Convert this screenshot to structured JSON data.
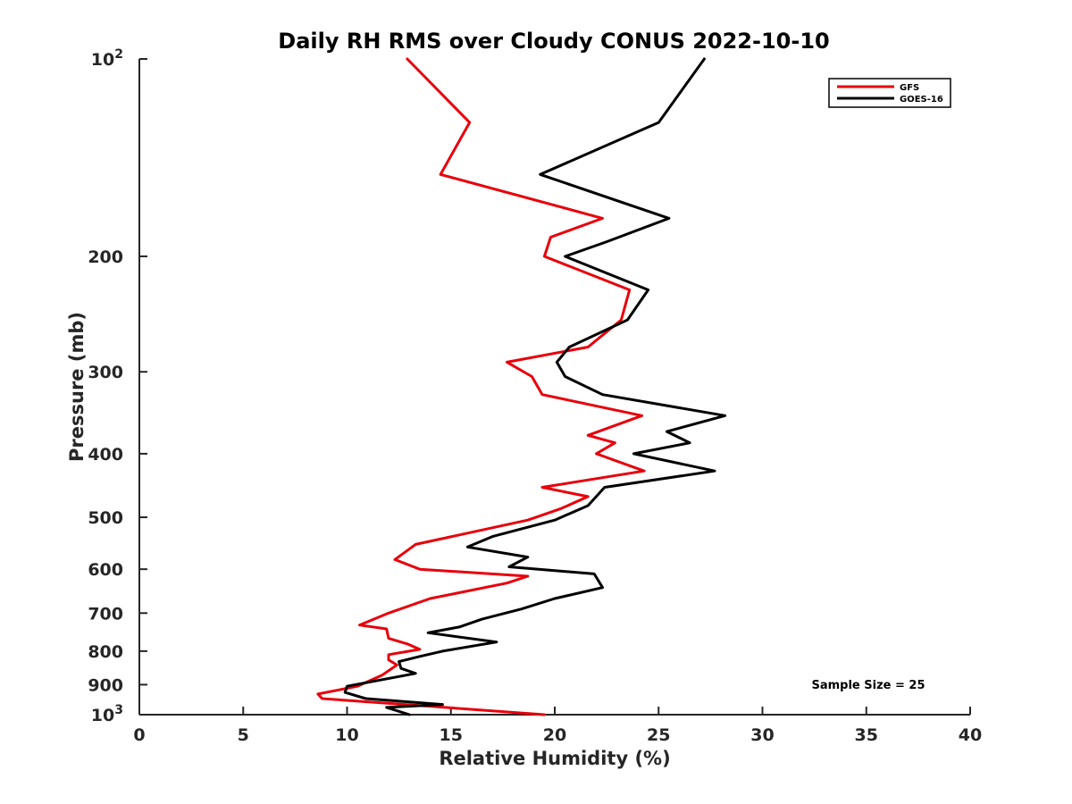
{
  "chart_data": {
    "type": "line",
    "title": "Daily RH RMS over Cloudy CONUS 2022-10-10",
    "xlabel": "Relative Humidity (%)",
    "ylabel": "Pressure (mb)",
    "xlim": [
      0,
      40
    ],
    "ylim": [
      100,
      1000
    ],
    "yscale": "log",
    "y_reversed": true,
    "grid": false,
    "legend_position": "top-right",
    "x_ticks": [
      "0",
      "5",
      "10",
      "15",
      "20",
      "25",
      "30",
      "35",
      "40"
    ],
    "y_ticks": [
      {
        "value": 100,
        "base": "10",
        "exp": "2"
      },
      {
        "value": 200,
        "label": "200"
      },
      {
        "value": 300,
        "label": "300"
      },
      {
        "value": 400,
        "label": "400"
      },
      {
        "value": 500,
        "label": "500"
      },
      {
        "value": 600,
        "label": "600"
      },
      {
        "value": 700,
        "label": "700"
      },
      {
        "value": 800,
        "label": "800"
      },
      {
        "value": 900,
        "label": "900"
      },
      {
        "value": 1000,
        "base": "10",
        "exp": "3"
      }
    ],
    "annotation": "Sample Size = 25",
    "series": [
      {
        "name": "GFS",
        "color": "#e8000b",
        "points": [
          [
            12.9,
            100
          ],
          [
            15.9,
            125
          ],
          [
            14.5,
            150
          ],
          [
            22.3,
            175
          ],
          [
            19.8,
            187
          ],
          [
            19.5,
            200
          ],
          [
            23.6,
            225
          ],
          [
            23.2,
            250
          ],
          [
            21.6,
            275
          ],
          [
            17.7,
            290
          ],
          [
            18.9,
            305
          ],
          [
            19.4,
            325
          ],
          [
            24.2,
            350
          ],
          [
            21.6,
            375
          ],
          [
            22.9,
            385
          ],
          [
            22.0,
            400
          ],
          [
            24.3,
            425
          ],
          [
            19.4,
            450
          ],
          [
            21.6,
            465
          ],
          [
            20.3,
            485
          ],
          [
            18.7,
            505
          ],
          [
            13.3,
            550
          ],
          [
            12.3,
            580
          ],
          [
            13.5,
            600
          ],
          [
            18.7,
            615
          ],
          [
            17.7,
            630
          ],
          [
            14.0,
            665
          ],
          [
            12.0,
            700
          ],
          [
            10.6,
            730
          ],
          [
            11.9,
            740
          ],
          [
            12.0,
            765
          ],
          [
            12.9,
            780
          ],
          [
            13.5,
            795
          ],
          [
            12.0,
            810
          ],
          [
            12.0,
            825
          ],
          [
            12.4,
            840
          ],
          [
            11.7,
            870
          ],
          [
            10.5,
            905
          ],
          [
            8.6,
            930
          ],
          [
            8.8,
            945
          ],
          [
            12.8,
            965
          ],
          [
            19.5,
            1000
          ]
        ]
      },
      {
        "name": "GOES-16",
        "color": "#000000",
        "points": [
          [
            27.2,
            100
          ],
          [
            25.0,
            125
          ],
          [
            19.3,
            150
          ],
          [
            25.5,
            175
          ],
          [
            22.5,
            190
          ],
          [
            20.5,
            200
          ],
          [
            24.5,
            225
          ],
          [
            23.5,
            250
          ],
          [
            20.7,
            275
          ],
          [
            20.1,
            290
          ],
          [
            20.5,
            305
          ],
          [
            22.3,
            325
          ],
          [
            28.2,
            350
          ],
          [
            25.4,
            370
          ],
          [
            26.5,
            385
          ],
          [
            23.8,
            400
          ],
          [
            27.7,
            425
          ],
          [
            22.4,
            450
          ],
          [
            21.6,
            480
          ],
          [
            20.0,
            505
          ],
          [
            17.0,
            535
          ],
          [
            15.8,
            555
          ],
          [
            18.7,
            575
          ],
          [
            17.8,
            595
          ],
          [
            21.9,
            610
          ],
          [
            22.3,
            640
          ],
          [
            20.0,
            665
          ],
          [
            18.4,
            690
          ],
          [
            16.5,
            715
          ],
          [
            15.4,
            735
          ],
          [
            13.9,
            750
          ],
          [
            17.2,
            775
          ],
          [
            14.6,
            800
          ],
          [
            13.5,
            815
          ],
          [
            12.5,
            830
          ],
          [
            12.6,
            850
          ],
          [
            13.3,
            865
          ],
          [
            10.0,
            905
          ],
          [
            9.9,
            925
          ],
          [
            10.9,
            945
          ],
          [
            14.6,
            965
          ],
          [
            11.9,
            975
          ],
          [
            13.0,
            1000
          ]
        ]
      }
    ]
  }
}
